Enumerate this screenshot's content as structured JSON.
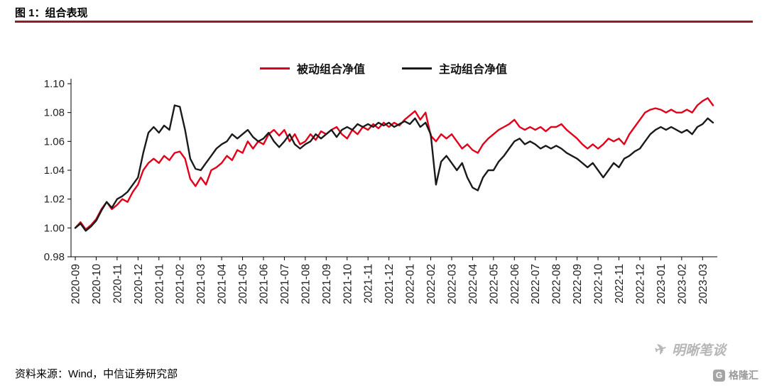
{
  "header": {
    "title": "图 1：组合表现",
    "rule_color": "#971b20"
  },
  "legend": [
    {
      "label": "被动组合净值",
      "color": "#e3001b"
    },
    {
      "label": "主动组合净值",
      "color": "#1a1a1a"
    }
  ],
  "footer": {
    "source": "资料来源：Wind，中信证券研究部"
  },
  "watermark": {
    "brand": "明晰笔谈",
    "platform": "格隆汇"
  },
  "chart_data": {
    "type": "line",
    "title": "组合表现",
    "xlabel": "",
    "ylabel": "",
    "ylim": [
      0.98,
      1.1
    ],
    "ytick_step": 0.02,
    "grid": false,
    "legend_position": "top",
    "samples_per_month": 4,
    "categories": [
      "2020-09",
      "2020-10",
      "2020-11",
      "2020-12",
      "2021-01",
      "2021-02",
      "2021-03",
      "2021-04",
      "2021-05",
      "2021-06",
      "2021-07",
      "2021-08",
      "2021-09",
      "2021-10",
      "2021-11",
      "2021-12",
      "2022-01",
      "2022-02",
      "2022-03",
      "2022-04",
      "2022-05",
      "2022-06",
      "2022-07",
      "2022-08",
      "2022-09",
      "2022-10",
      "2022-11",
      "2022-12",
      "2023-01",
      "2023-02",
      "2023-03"
    ],
    "series": [
      {
        "name": "被动组合净值",
        "color": "#e3001b",
        "values": [
          1.0,
          1.004,
          0.999,
          1.002,
          1.006,
          1.013,
          1.018,
          1.013,
          1.016,
          1.02,
          1.018,
          1.025,
          1.03,
          1.04,
          1.045,
          1.048,
          1.045,
          1.05,
          1.047,
          1.052,
          1.053,
          1.048,
          1.034,
          1.029,
          1.035,
          1.03,
          1.04,
          1.042,
          1.045,
          1.05,
          1.047,
          1.054,
          1.052,
          1.06,
          1.055,
          1.06,
          1.058,
          1.065,
          1.068,
          1.064,
          1.068,
          1.06,
          1.065,
          1.058,
          1.06,
          1.065,
          1.061,
          1.067,
          1.065,
          1.068,
          1.07,
          1.065,
          1.062,
          1.068,
          1.065,
          1.07,
          1.068,
          1.072,
          1.069,
          1.073,
          1.07,
          1.073,
          1.071,
          1.075,
          1.078,
          1.081,
          1.075,
          1.08,
          1.064,
          1.06,
          1.065,
          1.062,
          1.065,
          1.06,
          1.055,
          1.058,
          1.054,
          1.052,
          1.058,
          1.062,
          1.065,
          1.068,
          1.07,
          1.072,
          1.075,
          1.07,
          1.068,
          1.07,
          1.068,
          1.07,
          1.067,
          1.07,
          1.07,
          1.072,
          1.068,
          1.065,
          1.062,
          1.058,
          1.055,
          1.058,
          1.055,
          1.058,
          1.062,
          1.06,
          1.062,
          1.058,
          1.065,
          1.07,
          1.075,
          1.08,
          1.082,
          1.083,
          1.082,
          1.08,
          1.082,
          1.08,
          1.08,
          1.082,
          1.08,
          1.085,
          1.088,
          1.09,
          1.085
        ]
      },
      {
        "name": "主动组合净值",
        "color": "#1a1a1a",
        "values": [
          1.0,
          1.003,
          0.998,
          1.001,
          1.005,
          1.012,
          1.018,
          1.014,
          1.02,
          1.022,
          1.025,
          1.03,
          1.035,
          1.052,
          1.066,
          1.07,
          1.066,
          1.071,
          1.068,
          1.085,
          1.084,
          1.068,
          1.048,
          1.041,
          1.04,
          1.045,
          1.05,
          1.055,
          1.058,
          1.06,
          1.065,
          1.062,
          1.065,
          1.068,
          1.063,
          1.06,
          1.062,
          1.066,
          1.06,
          1.056,
          1.06,
          1.065,
          1.058,
          1.055,
          1.058,
          1.06,
          1.065,
          1.062,
          1.065,
          1.068,
          1.063,
          1.068,
          1.07,
          1.068,
          1.072,
          1.07,
          1.072,
          1.07,
          1.073,
          1.071,
          1.073,
          1.07,
          1.072,
          1.074,
          1.072,
          1.076,
          1.07,
          1.073,
          1.065,
          1.03,
          1.046,
          1.05,
          1.045,
          1.04,
          1.045,
          1.035,
          1.028,
          1.026,
          1.035,
          1.04,
          1.04,
          1.046,
          1.05,
          1.055,
          1.06,
          1.062,
          1.058,
          1.06,
          1.058,
          1.055,
          1.057,
          1.055,
          1.057,
          1.055,
          1.052,
          1.05,
          1.048,
          1.045,
          1.042,
          1.045,
          1.04,
          1.035,
          1.04,
          1.045,
          1.042,
          1.048,
          1.05,
          1.053,
          1.055,
          1.06,
          1.065,
          1.068,
          1.07,
          1.068,
          1.07,
          1.068,
          1.066,
          1.068,
          1.065,
          1.07,
          1.072,
          1.076,
          1.073
        ]
      }
    ]
  }
}
